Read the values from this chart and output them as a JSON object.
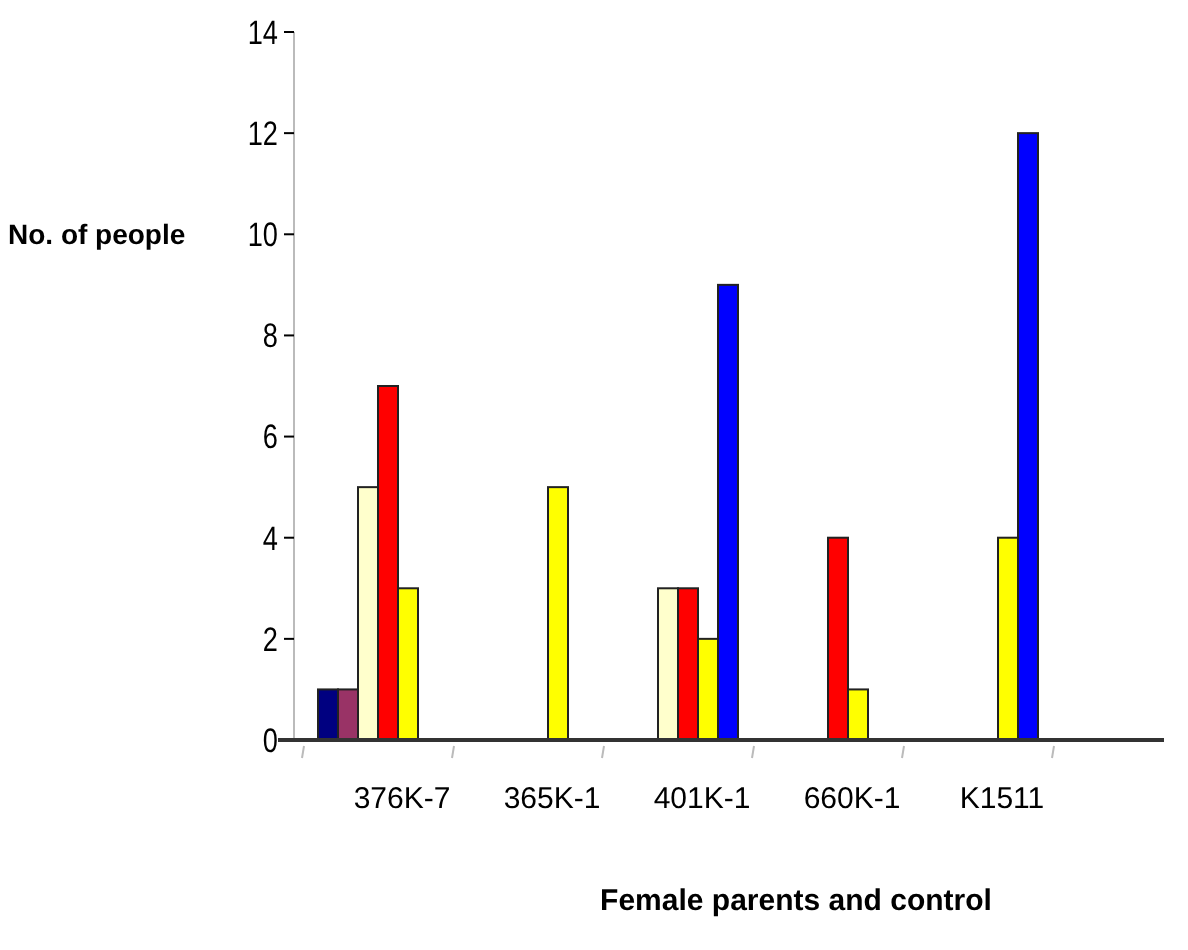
{
  "chart_data": {
    "type": "bar",
    "xlabel": "Female parents and control",
    "ylabel": "No. of people",
    "categories": [
      "376K-7",
      "365K-1",
      "401K-1",
      "660K-1",
      "K1511"
    ],
    "series": [
      {
        "color": "#000080",
        "values": [
          1,
          null,
          null,
          null,
          null
        ]
      },
      {
        "color": "#993366",
        "values": [
          1,
          null,
          null,
          null,
          null
        ]
      },
      {
        "color": "#ffffcc",
        "values": [
          5,
          null,
          3,
          null,
          null
        ]
      },
      {
        "color": "#ff0000",
        "values": [
          7,
          null,
          3,
          4,
          null
        ]
      },
      {
        "color": "#ffff00",
        "values": [
          3,
          5,
          2,
          1,
          4
        ]
      },
      {
        "color": "#0000ff",
        "values": [
          null,
          null,
          9,
          null,
          12
        ]
      }
    ],
    "ylim": [
      0,
      14
    ],
    "yticks": [
      0,
      2,
      4,
      6,
      8,
      10,
      12,
      14
    ],
    "grid": false
  }
}
